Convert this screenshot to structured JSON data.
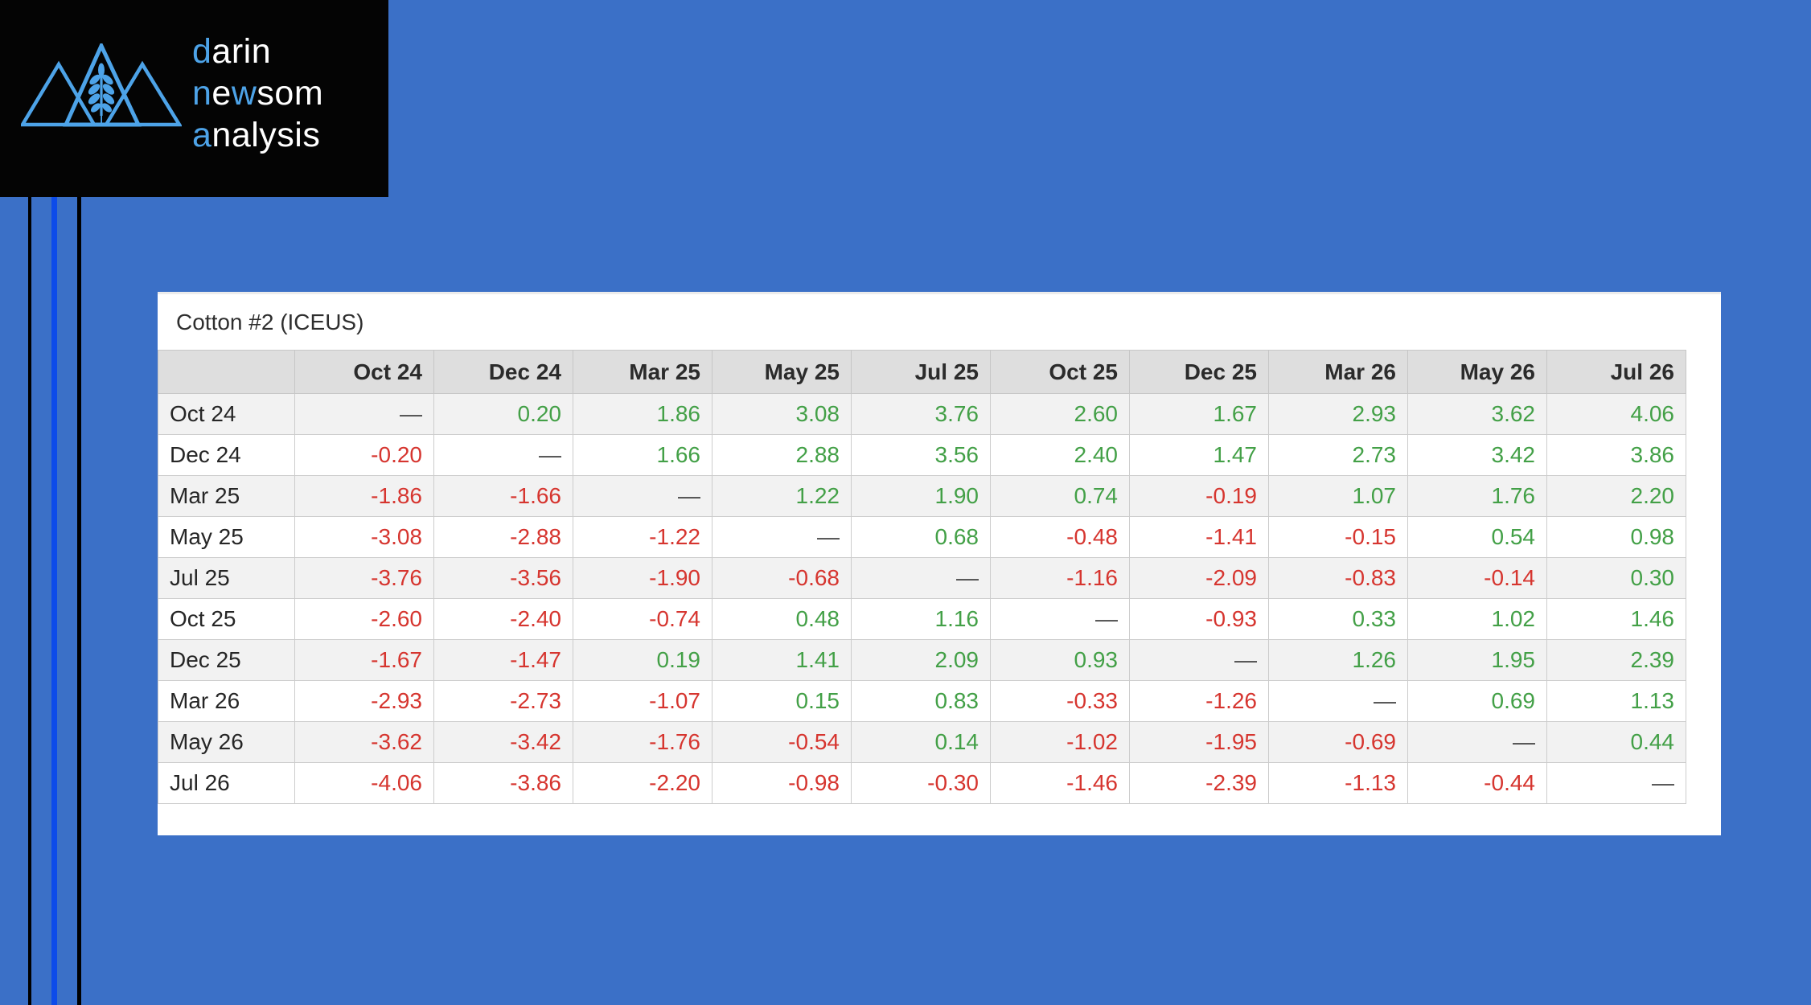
{
  "logo": {
    "icon": "mountains-wheat-icon",
    "lines": [
      {
        "segments": [
          {
            "text": "d",
            "color": "accent"
          },
          {
            "text": "arin",
            "color": "white"
          }
        ]
      },
      {
        "segments": [
          {
            "text": "n",
            "color": "accent"
          },
          {
            "text": "e",
            "color": "white"
          },
          {
            "text": "w",
            "color": "accent"
          },
          {
            "text": "som",
            "color": "white"
          }
        ]
      },
      {
        "segments": [
          {
            "text": "a",
            "color": "accent"
          },
          {
            "text": "nalysis",
            "color": "white"
          }
        ]
      }
    ]
  },
  "panel": {
    "title": "Cotton #2 (ICEUS)"
  },
  "table": {
    "columns": [
      "Oct 24",
      "Dec 24",
      "Mar 25",
      "May 25",
      "Jul 25",
      "Oct 25",
      "Dec 25",
      "Mar 26",
      "May 26",
      "Jul 26"
    ],
    "rows": [
      {
        "label": "Oct 24",
        "values": [
          "—",
          "0.20",
          "1.86",
          "3.08",
          "3.76",
          "2.60",
          "1.67",
          "2.93",
          "3.62",
          "4.06"
        ]
      },
      {
        "label": "Dec 24",
        "values": [
          "-0.20",
          "—",
          "1.66",
          "2.88",
          "3.56",
          "2.40",
          "1.47",
          "2.73",
          "3.42",
          "3.86"
        ]
      },
      {
        "label": "Mar 25",
        "values": [
          "-1.86",
          "-1.66",
          "—",
          "1.22",
          "1.90",
          "0.74",
          "-0.19",
          "1.07",
          "1.76",
          "2.20"
        ]
      },
      {
        "label": "May 25",
        "values": [
          "-3.08",
          "-2.88",
          "-1.22",
          "—",
          "0.68",
          "-0.48",
          "-1.41",
          "-0.15",
          "0.54",
          "0.98"
        ]
      },
      {
        "label": "Jul 25",
        "values": [
          "-3.76",
          "-3.56",
          "-1.90",
          "-0.68",
          "—",
          "-1.16",
          "-2.09",
          "-0.83",
          "-0.14",
          "0.30"
        ]
      },
      {
        "label": "Oct 25",
        "values": [
          "-2.60",
          "-2.40",
          "-0.74",
          "0.48",
          "1.16",
          "—",
          "-0.93",
          "0.33",
          "1.02",
          "1.46"
        ]
      },
      {
        "label": "Dec 25",
        "values": [
          "-1.67",
          "-1.47",
          "0.19",
          "1.41",
          "2.09",
          "0.93",
          "—",
          "1.26",
          "1.95",
          "2.39"
        ]
      },
      {
        "label": "Mar 26",
        "values": [
          "-2.93",
          "-2.73",
          "-1.07",
          "0.15",
          "0.83",
          "-0.33",
          "-1.26",
          "—",
          "0.69",
          "1.13"
        ]
      },
      {
        "label": "May 26",
        "values": [
          "-3.62",
          "-3.42",
          "-1.76",
          "-0.54",
          "0.14",
          "-1.02",
          "-1.95",
          "-0.69",
          "—",
          "0.44"
        ]
      },
      {
        "label": "Jul 26",
        "values": [
          "-4.06",
          "-3.86",
          "-2.20",
          "-0.98",
          "-0.30",
          "-1.46",
          "-2.39",
          "-1.13",
          "-0.44",
          "—"
        ]
      }
    ]
  },
  "colors": {
    "background": "#3B70C7",
    "accent_line_blue": "#0C4BEA",
    "logo_accent_blue": "#4DA3E8",
    "logo_background": "#040404",
    "positive_green": "#43A047",
    "negative_red": "#D6352F",
    "dash_gray": "#4A4A4A",
    "header_background": "#DEDEDE",
    "row_stripe": "#F2F2F2",
    "cell_border": "#CCCCCC"
  }
}
